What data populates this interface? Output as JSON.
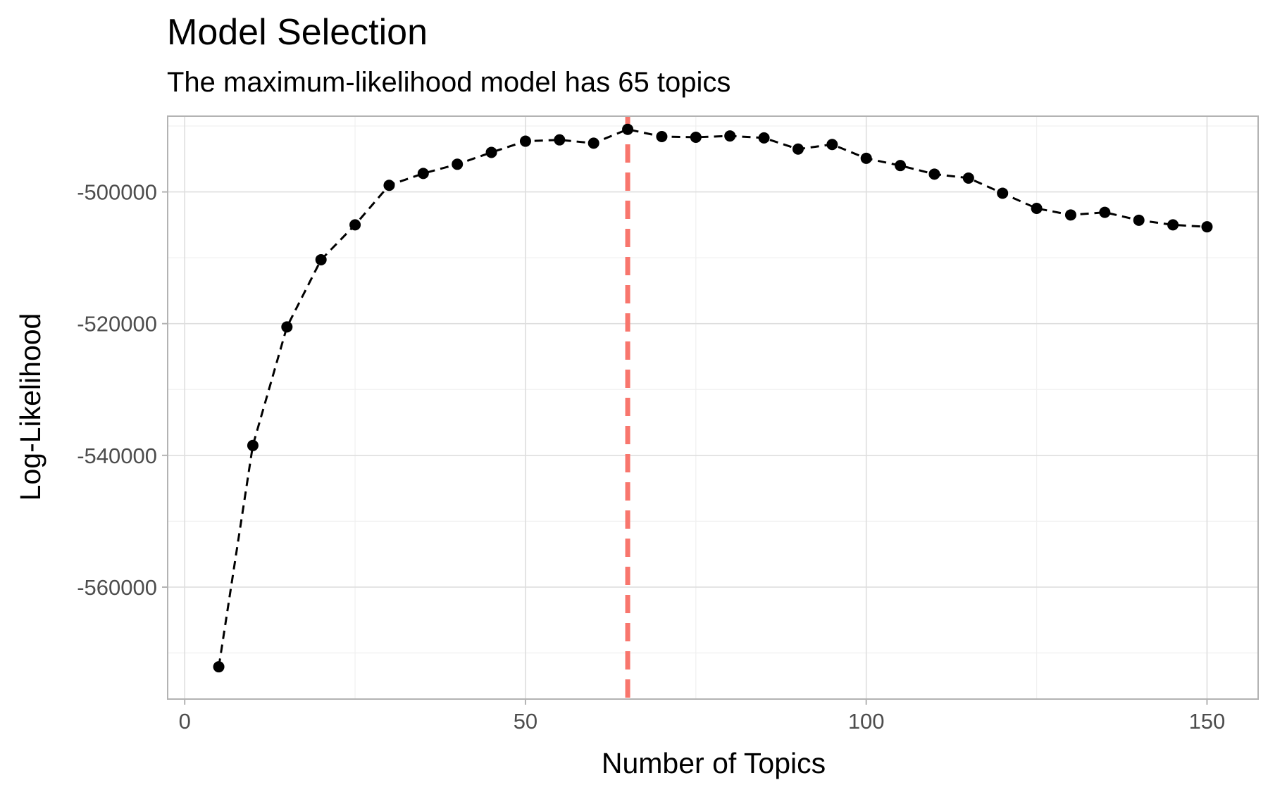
{
  "chart_data": {
    "type": "line",
    "title": "Model Selection",
    "subtitle": "The maximum-likelihood model has 65 topics",
    "xlabel": "Number of Topics",
    "ylabel": "Log-Likelihood",
    "xlim": [
      -2.5,
      157.5
    ],
    "ylim": [
      -577000,
      -488500
    ],
    "x_ticks": [
      0,
      50,
      100,
      150
    ],
    "x_tick_labels": [
      "0",
      "50",
      "100",
      "150"
    ],
    "y_ticks": [
      -560000,
      -540000,
      -520000,
      -500000
    ],
    "y_tick_labels": [
      "-560000",
      "-540000",
      "-520000",
      "-500000"
    ],
    "grid": true,
    "line_style": "dashed",
    "point_color": "#000000",
    "vline": {
      "x": 65,
      "color": "#f8766d",
      "style": "dashed"
    },
    "x": [
      5,
      10,
      15,
      20,
      25,
      30,
      35,
      40,
      45,
      50,
      55,
      60,
      65,
      70,
      75,
      80,
      85,
      90,
      95,
      100,
      105,
      110,
      115,
      120,
      125,
      130,
      135,
      140,
      145,
      150
    ],
    "values": [
      -572100,
      -538500,
      -520500,
      -510300,
      -505000,
      -499000,
      -497200,
      -495800,
      -494000,
      -492300,
      -492100,
      -492600,
      -490500,
      -491600,
      -491700,
      -491500,
      -491800,
      -493500,
      -492800,
      -494900,
      -496000,
      -497300,
      -497900,
      -500200,
      -502500,
      -503500,
      -503100,
      -504300,
      -505000,
      -505300
    ]
  }
}
